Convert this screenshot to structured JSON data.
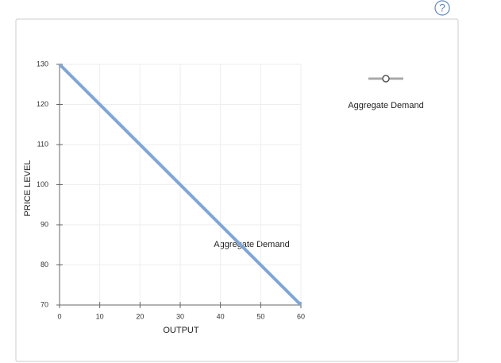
{
  "help": "?",
  "chart_data": {
    "type": "line",
    "x": [
      0,
      60
    ],
    "series": [
      {
        "name": "Aggregate Demand",
        "color": "#7ea6d6",
        "values": [
          130,
          70
        ]
      }
    ],
    "xlabel": "OUTPUT",
    "ylabel": "PRICE LEVEL",
    "annotation": "Aggregate Demand",
    "xlim": [
      0,
      60
    ],
    "xticks": [
      0,
      10,
      20,
      30,
      40,
      50,
      60
    ],
    "ylim": [
      70,
      130
    ],
    "yticks": [
      70,
      80,
      90,
      100,
      110,
      120,
      130
    ],
    "grid": true,
    "legend": "right"
  }
}
